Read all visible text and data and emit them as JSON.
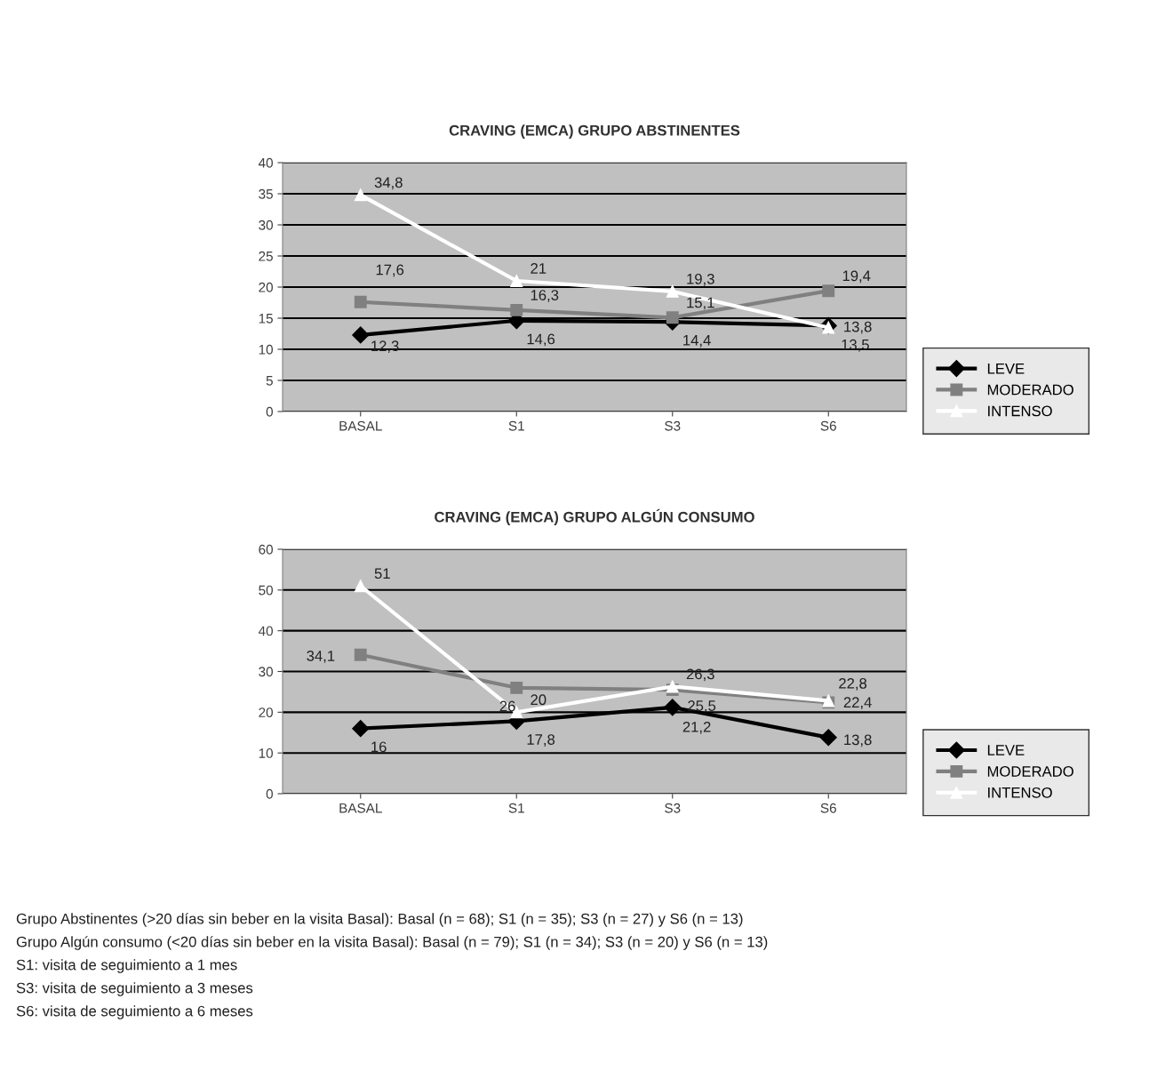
{
  "chart_data": [
    {
      "type": "line",
      "title": "CRAVING (EMCA) GRUPO ABSTINENTES",
      "categories": [
        "BASAL",
        "S1",
        "S3",
        "S6"
      ],
      "ylim": [
        0,
        40
      ],
      "yticks": [
        0,
        5,
        10,
        15,
        20,
        25,
        30,
        35,
        40
      ],
      "grid": "y",
      "legend": "right",
      "line_style": "solid",
      "series": [
        {
          "name": "LEVE",
          "color": "#000000",
          "marker": "diamond",
          "values": [
            12.3,
            14.6,
            14.4,
            13.8
          ],
          "value_labels": [
            "12,3",
            "14,6",
            "14,4",
            "13,8"
          ]
        },
        {
          "name": "MODERADO",
          "color": "#808080",
          "marker": "square",
          "values": [
            17.6,
            16.3,
            15.1,
            19.4
          ],
          "value_labels": [
            "17,6",
            "16,3",
            "15,1",
            "19,4"
          ]
        },
        {
          "name": "INTENSO",
          "color": "#ffffff",
          "marker": "triangle",
          "values": [
            34.8,
            21,
            19.3,
            13.5
          ],
          "value_labels": [
            "34,8",
            "21",
            "19,3",
            "13,5"
          ]
        }
      ]
    },
    {
      "type": "line",
      "title": "CRAVING (EMCA) GRUPO ALGÚN CONSUMO",
      "categories": [
        "BASAL",
        "S1",
        "S3",
        "S6"
      ],
      "ylim": [
        0,
        60
      ],
      "yticks": [
        0,
        10,
        20,
        30,
        40,
        50,
        60
      ],
      "grid": "y",
      "legend": "right",
      "line_style": "solid",
      "series": [
        {
          "name": "LEVE",
          "color": "#000000",
          "marker": "diamond",
          "values": [
            16,
            17.8,
            21.2,
            13.8
          ],
          "value_labels": [
            "16",
            "17,8",
            "21,2",
            "13,8"
          ]
        },
        {
          "name": "MODERADO",
          "color": "#808080",
          "marker": "square",
          "values": [
            34.1,
            26,
            25.5,
            22.4
          ],
          "value_labels": [
            "34,1",
            "26",
            "25,5",
            "22,4"
          ]
        },
        {
          "name": "INTENSO",
          "color": "#ffffff",
          "marker": "triangle",
          "values": [
            51,
            20,
            26.3,
            22.8
          ],
          "value_labels": [
            "51",
            "20",
            "26,3",
            "22,8"
          ]
        }
      ],
      "annotations": [
        "Grupo Abstinentes (>20 días sin beber en la visita Basal): Basal (n = 68); S1 (n = 35); S3 (n = 27) y S6 (n = 13)",
        "Grupo Algún consumo (<20 días sin beber en la visita Basal): Basal (n = 79); S1 (n = 34); S3 (n = 20) y S6 (n = 13)",
        "S1: visita de seguimiento a 1 mes",
        "S3: visita de seguimiento a 3 meses",
        "S6: visita de seguimiento a 6 meses"
      ]
    }
  ]
}
